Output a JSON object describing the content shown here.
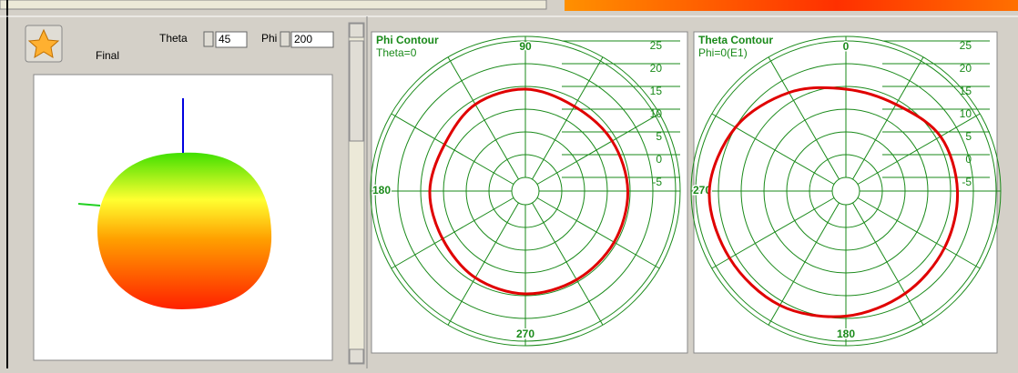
{
  "toolbar": {
    "button_label": "Final",
    "theta_label": "Theta",
    "theta_value": "45",
    "phi_label": "Phi",
    "phi_value": "200"
  },
  "plots": [
    {
      "type": "polar",
      "title": "Phi Contour",
      "subtitle": "Theta=0",
      "zero_direction": "right",
      "direction": "ccw",
      "angle_labels": [
        90,
        180,
        270
      ],
      "rticks": [
        25,
        20,
        15,
        10,
        5,
        0,
        -5
      ],
      "rlim": [
        -8,
        25
      ],
      "color": "#e00000",
      "angles": [
        0,
        30,
        60,
        90,
        120,
        150,
        180,
        210,
        240,
        270,
        300,
        330
      ],
      "values": [
        14.5,
        14,
        13.5,
        14.4,
        14,
        12.5,
        13,
        13,
        14,
        14.6,
        14.5,
        14.5
      ]
    },
    {
      "type": "polar",
      "title": "Theta Contour",
      "subtitle": "Phi=0(E1)",
      "zero_direction": "top",
      "direction": "cw",
      "angle_labels": [
        0,
        270,
        180
      ],
      "rticks": [
        25,
        20,
        15,
        10,
        5,
        0,
        -5
      ],
      "rlim": [
        -8,
        25
      ],
      "color": "#e00000",
      "angles": [
        0,
        30,
        60,
        90,
        120,
        150,
        180,
        210,
        240,
        270,
        300,
        330
      ],
      "values": [
        14.4,
        14,
        16,
        16.5,
        17,
        18,
        19.5,
        21,
        21.5,
        22,
        20,
        17
      ]
    }
  ]
}
